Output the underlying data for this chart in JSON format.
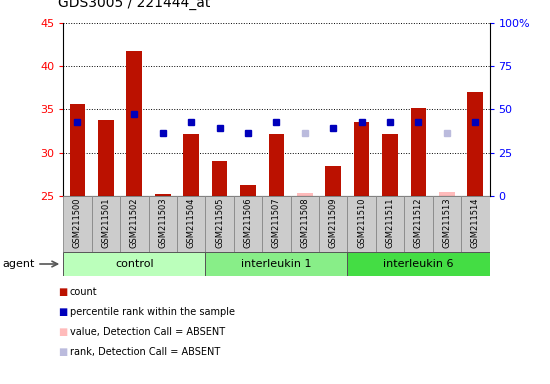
{
  "title": "GDS3005 / 221444_at",
  "samples": [
    "GSM211500",
    "GSM211501",
    "GSM211502",
    "GSM211503",
    "GSM211504",
    "GSM211505",
    "GSM211506",
    "GSM211507",
    "GSM211508",
    "GSM211509",
    "GSM211510",
    "GSM211511",
    "GSM211512",
    "GSM211513",
    "GSM211514"
  ],
  "bar_values": [
    35.6,
    33.8,
    41.8,
    25.2,
    32.2,
    29.0,
    26.3,
    32.1,
    null,
    28.5,
    33.5,
    32.2,
    35.2,
    null,
    37.0
  ],
  "bar_absent": [
    null,
    null,
    null,
    null,
    null,
    null,
    null,
    null,
    25.3,
    null,
    null,
    null,
    null,
    25.5,
    null
  ],
  "rank_values": [
    33.5,
    null,
    34.5,
    32.3,
    33.5,
    32.8,
    32.3,
    33.5,
    null,
    32.8,
    33.5,
    33.5,
    33.5,
    null,
    33.5
  ],
  "rank_absent": [
    null,
    null,
    null,
    null,
    null,
    null,
    null,
    null,
    32.3,
    null,
    null,
    null,
    null,
    32.3,
    null
  ],
  "groups": [
    {
      "label": "control",
      "start": 0,
      "end": 4,
      "color": "#bbffbb"
    },
    {
      "label": "interleukin 1",
      "start": 5,
      "end": 9,
      "color": "#88ee88"
    },
    {
      "label": "interleukin 6",
      "start": 10,
      "end": 14,
      "color": "#44dd44"
    }
  ],
  "ylim_left": [
    25,
    45
  ],
  "ylim_right": [
    0,
    100
  ],
  "left_ticks": [
    25,
    30,
    35,
    40,
    45
  ],
  "right_ticks": [
    0,
    25,
    50,
    75,
    100
  ],
  "right_tick_labels": [
    "0",
    "25",
    "50",
    "75",
    "100%"
  ],
  "bar_color": "#bb1100",
  "bar_absent_color": "#ffbbbb",
  "rank_color": "#0000bb",
  "rank_absent_color": "#bbbbdd",
  "xtick_bg_color": "#cccccc",
  "plot_bg": "#ffffff",
  "agent_label": "agent",
  "legend": [
    {
      "color": "#bb1100",
      "label": "count"
    },
    {
      "color": "#0000bb",
      "label": "percentile rank within the sample"
    },
    {
      "color": "#ffbbbb",
      "label": "value, Detection Call = ABSENT"
    },
    {
      "color": "#bbbbdd",
      "label": "rank, Detection Call = ABSENT"
    }
  ]
}
